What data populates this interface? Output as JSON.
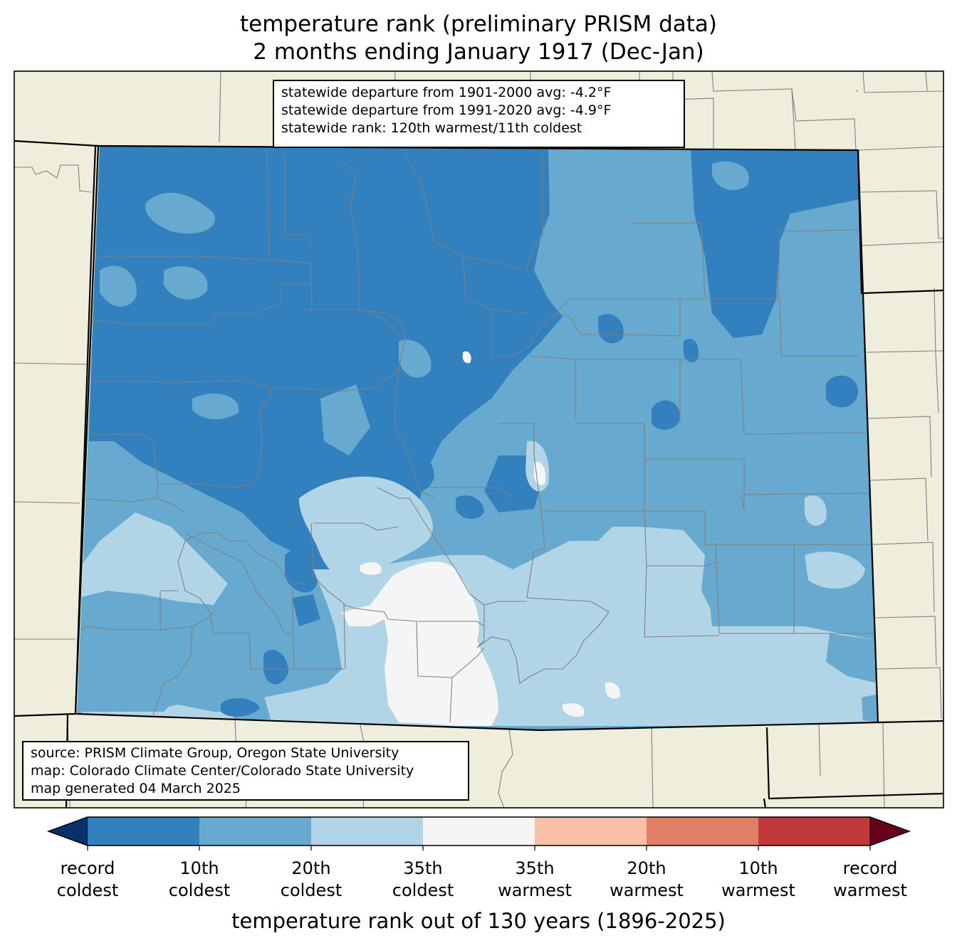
{
  "title": {
    "line1": "temperature rank (preliminary PRISM data)",
    "line2": "2 months ending January 1917 (Dec-Jan)"
  },
  "stats": {
    "line1": "statewide departure from 1901-2000 avg: -4.2°F",
    "line2": "statewide departure from 1991-2020 avg: -4.9°F",
    "line3": "statewide rank: 120th warmest/11th coldest"
  },
  "source": {
    "line1": "source: PRISM Climate Group, Oregon State University",
    "line2": "map: Colorado Climate Center/Colorado State University",
    "line3": "map generated 04 March 2025"
  },
  "legend": {
    "title": "temperature rank out of 130 years (1896-2025)",
    "classes": [
      {
        "color": "#08306b"
      },
      {
        "color": "#3280bd"
      },
      {
        "color": "#67a9cf"
      },
      {
        "color": "#b1d4e6"
      },
      {
        "color": "#f5f5f5"
      },
      {
        "color": "#f9c0a7"
      },
      {
        "color": "#e17f66"
      },
      {
        "color": "#c1383a"
      },
      {
        "color": "#67001f"
      }
    ],
    "ticks": [
      {
        "line1": "record",
        "line2": "coldest"
      },
      {
        "line1": "10th",
        "line2": "coldest"
      },
      {
        "line1": "20th",
        "line2": "coldest"
      },
      {
        "line1": "35th",
        "line2": "coldest"
      },
      {
        "line1": "35th",
        "line2": "warmest"
      },
      {
        "line1": "20th",
        "line2": "warmest"
      },
      {
        "line1": "10th",
        "line2": "warmest"
      },
      {
        "line1": "record",
        "line2": "warmest"
      }
    ]
  },
  "colors": {
    "land": "#efeedc",
    "county_line": "#808080",
    "state_line": "#000000"
  }
}
